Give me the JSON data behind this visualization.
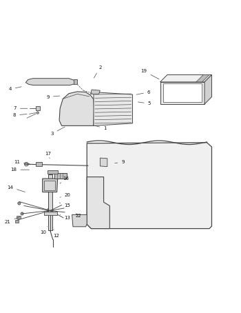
{
  "bg_color": "#ffffff",
  "fig_width": 3.5,
  "fig_height": 4.54,
  "dpi": 100,
  "lc": "#444444",
  "lw": 0.7,
  "thin": 0.5,
  "callouts": {
    "1": [
      0.435,
      0.618,
      0.385,
      0.63
    ],
    "2": [
      0.415,
      0.87,
      0.385,
      0.82
    ],
    "3": [
      0.215,
      0.595,
      0.275,
      0.627
    ],
    "4": [
      0.04,
      0.78,
      0.095,
      0.792
    ],
    "5": [
      0.62,
      0.72,
      0.565,
      0.728
    ],
    "6": [
      0.618,
      0.768,
      0.558,
      0.756
    ],
    "7": [
      0.06,
      0.7,
      0.12,
      0.7
    ],
    "8": [
      0.058,
      0.672,
      0.118,
      0.677
    ],
    "9a": [
      0.198,
      0.748,
      0.255,
      0.753
    ],
    "9b": [
      0.51,
      0.476,
      0.468,
      0.472
    ],
    "10": [
      0.178,
      0.185,
      0.2,
      0.215
    ],
    "11": [
      0.068,
      0.476,
      0.13,
      0.468
    ],
    "12": [
      0.232,
      0.17,
      0.218,
      0.204
    ],
    "13": [
      0.278,
      0.245,
      0.248,
      0.258
    ],
    "14": [
      0.04,
      0.372,
      0.11,
      0.35
    ],
    "15": [
      0.278,
      0.295,
      0.245,
      0.308
    ],
    "16": [
      0.272,
      0.408,
      0.248,
      0.388
    ],
    "17": [
      0.198,
      0.512,
      0.205,
      0.492
    ],
    "18": [
      0.055,
      0.445,
      0.128,
      0.445
    ],
    "19": [
      0.598,
      0.855,
      0.668,
      0.818
    ],
    "20": [
      0.28,
      0.34,
      0.248,
      0.33
    ],
    "21": [
      0.03,
      0.228,
      0.088,
      0.252
    ],
    "22": [
      0.325,
      0.252,
      0.308,
      0.268
    ]
  }
}
